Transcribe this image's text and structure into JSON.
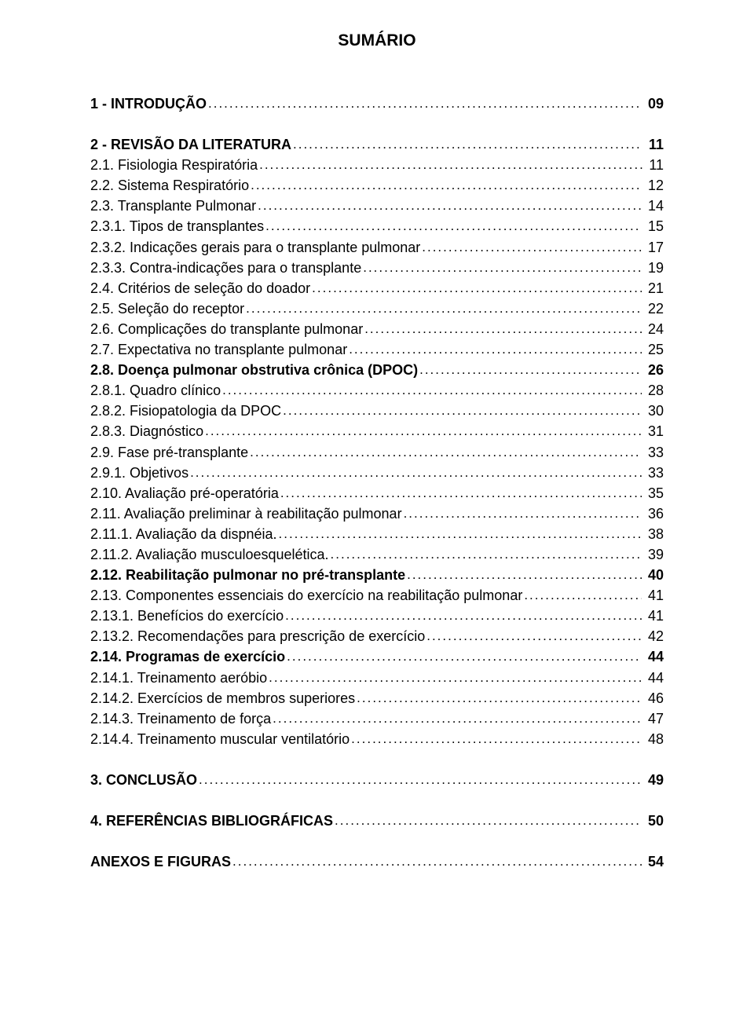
{
  "title": "SUMÁRIO",
  "font": {
    "family": "Arial",
    "title_size_pt": 21,
    "body_size_pt": 18,
    "color": "#000000"
  },
  "background_color": "#ffffff",
  "entries": [
    {
      "label": "1 - INTRODUÇÃO",
      "page": "09",
      "bold": true,
      "spaced": false
    },
    {
      "label": "2 - REVISÃO DA LITERATURA",
      "page": "11",
      "bold": true,
      "spaced": true
    },
    {
      "label": "2.1. Fisiologia Respiratória",
      "page": "11",
      "bold": false,
      "spaced": false
    },
    {
      "label": "2.2. Sistema Respiratório",
      "page": "12",
      "bold": false,
      "spaced": false
    },
    {
      "label": "2.3. Transplante Pulmonar ",
      "page": "14",
      "bold": false,
      "spaced": false
    },
    {
      "label": "2.3.1. Tipos de transplantes",
      "page": "15",
      "bold": false,
      "spaced": false
    },
    {
      "label": "2.3.2. Indicações gerais para o transplante pulmonar",
      "page": "17",
      "bold": false,
      "spaced": false
    },
    {
      "label": "2.3.3. Contra-indicações para o transplante",
      "page": "19",
      "bold": false,
      "spaced": false
    },
    {
      "label": "2.4. Critérios de seleção do doador ",
      "page": "21",
      "bold": false,
      "spaced": false
    },
    {
      "label": "2.5. Seleção do receptor",
      "page": "22",
      "bold": false,
      "spaced": false
    },
    {
      "label": "2.6. Complicações do transplante pulmonar",
      "page": "24",
      "bold": false,
      "spaced": false
    },
    {
      "label": "2.7. Expectativa no transplante pulmonar",
      "page": "25",
      "bold": false,
      "spaced": false
    },
    {
      "label": "2.8. Doença pulmonar obstrutiva crônica (DPOC) ",
      "page": "26",
      "bold": true,
      "spaced": false
    },
    {
      "label": "2.8.1. Quadro clínico",
      "page": "28",
      "bold": false,
      "spaced": false
    },
    {
      "label": "2.8.2. Fisiopatologia da DPOC",
      "page": "30",
      "bold": false,
      "spaced": false
    },
    {
      "label": "2.8.3. Diagnóstico ",
      "page": "31",
      "bold": false,
      "spaced": false
    },
    {
      "label": "2.9. Fase pré-transplante ",
      "page": "33",
      "bold": false,
      "spaced": false
    },
    {
      "label": "2.9.1. Objetivos",
      "page": "33",
      "bold": false,
      "spaced": false
    },
    {
      "label": "2.10. Avaliação pré-operatória",
      "page": "35",
      "bold": false,
      "spaced": false
    },
    {
      "label": "2.11. Avaliação preliminar à reabilitação pulmonar",
      "page": "36",
      "bold": false,
      "spaced": false
    },
    {
      "label": "2.11.1. Avaliação da dispnéia.",
      "page": "38",
      "bold": false,
      "spaced": false
    },
    {
      "label": "2.11.2. Avaliação musculoesquelética. ",
      "page": "39",
      "bold": false,
      "spaced": false
    },
    {
      "label": "2.12. Reabilitação pulmonar no pré-transplante",
      "page": "40",
      "bold": true,
      "spaced": false
    },
    {
      "label": "2.13. Componentes essenciais do exercício na reabilitação pulmonar",
      "page": "41",
      "bold": false,
      "spaced": false
    },
    {
      "label": "2.13.1. Benefícios do exercício",
      "page": "41",
      "bold": false,
      "spaced": false
    },
    {
      "label": "2.13.2. Recomendações para prescrição de exercício",
      "page": "42",
      "bold": false,
      "spaced": false
    },
    {
      "label": "2.14. Programas de exercício",
      "page": "44",
      "bold": true,
      "spaced": false
    },
    {
      "label": "2.14.1. Treinamento aeróbio ",
      "page": "44",
      "bold": false,
      "spaced": false
    },
    {
      "label": "2.14.2. Exercícios de membros superiores ",
      "page": "46",
      "bold": false,
      "spaced": false
    },
    {
      "label": "2.14.3. Treinamento de força ",
      "page": "47",
      "bold": false,
      "spaced": false
    },
    {
      "label": "2.14.4. Treinamento muscular ventilatório ",
      "page": "48",
      "bold": false,
      "spaced": false
    },
    {
      "label": "3. CONCLUSÃO ",
      "page": "49",
      "bold": true,
      "spaced": true
    },
    {
      "label": "4. REFERÊNCIAS BIBLIOGRÁFICAS",
      "page": "50",
      "bold": true,
      "spaced": true
    },
    {
      "label": "ANEXOS E FIGURAS",
      "page": "54",
      "bold": true,
      "spaced": true
    }
  ]
}
